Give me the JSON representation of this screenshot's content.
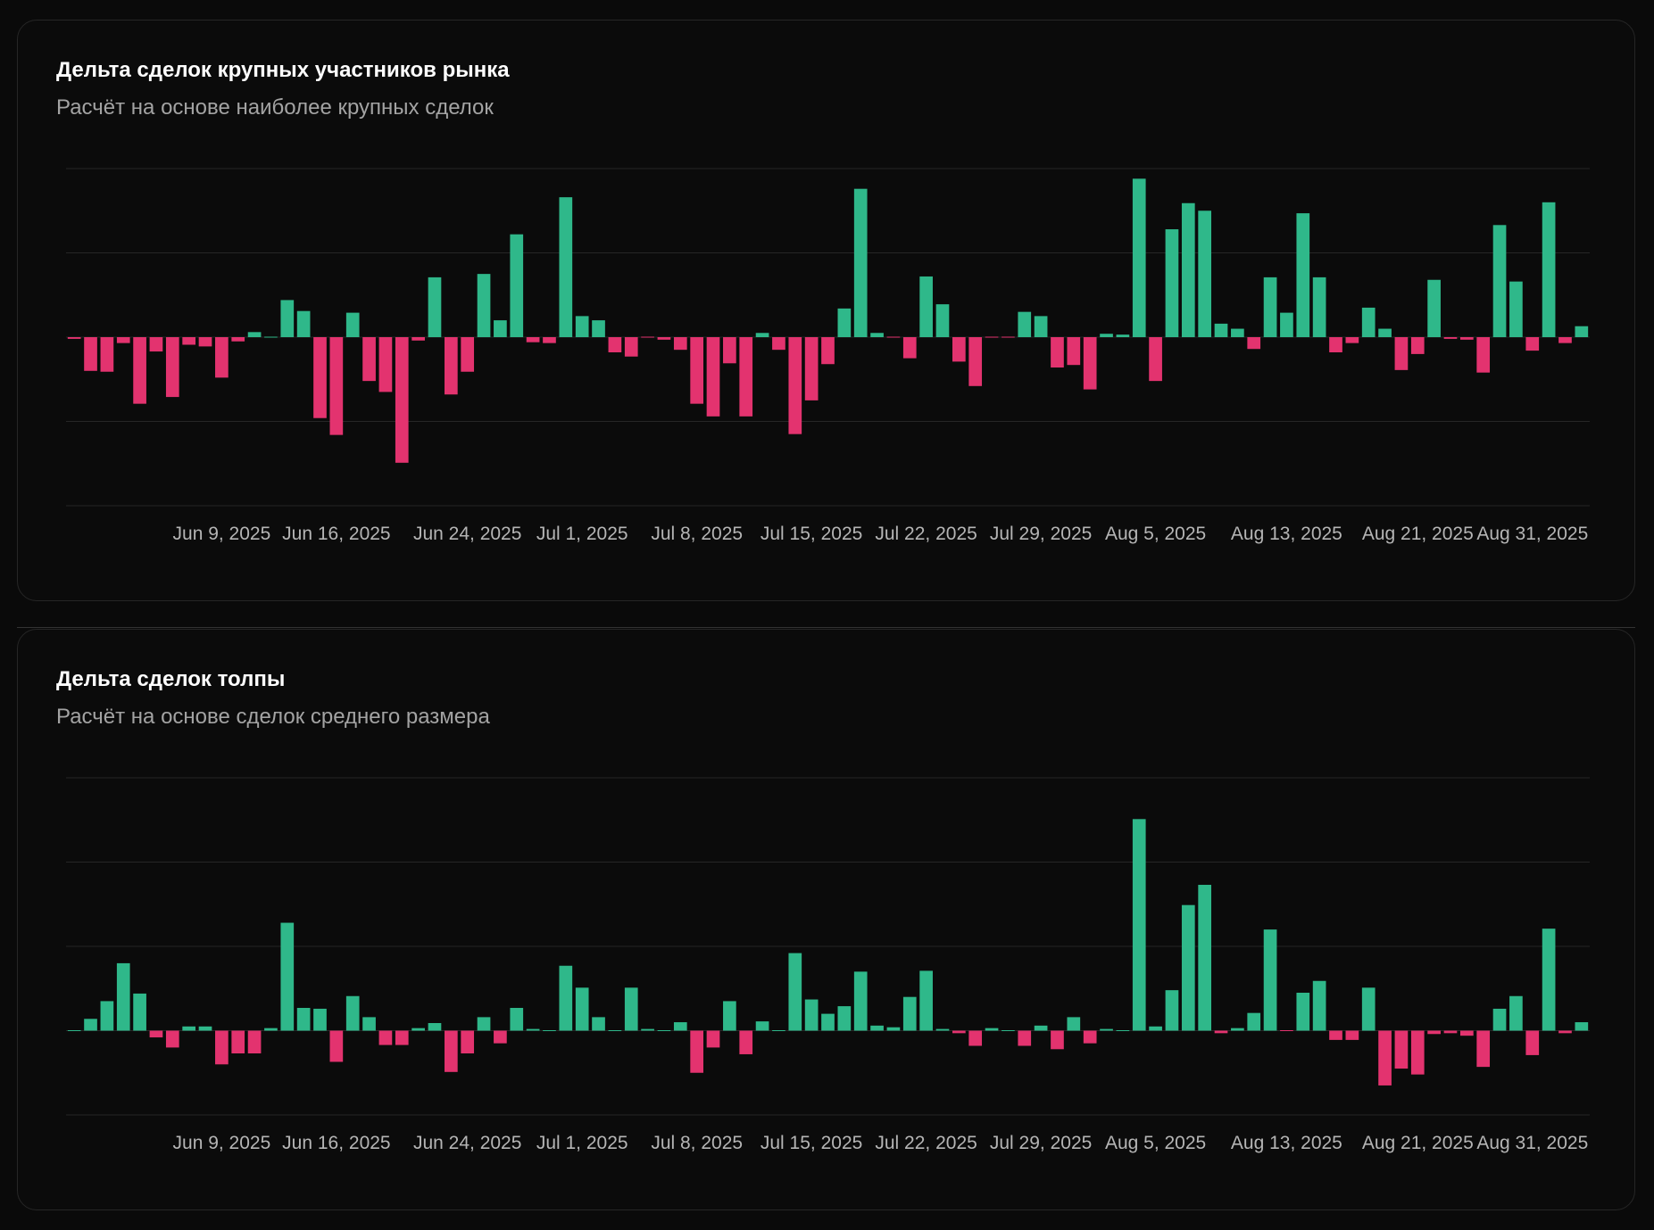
{
  "colors": {
    "positive": "#2fb88a",
    "negative": "#e3336f",
    "grid": "#262626"
  },
  "charts": [
    {
      "title": "Дельта сделок крупных участников рынка",
      "subtitle": "Расчёт на основе наиболее крупных сделок"
    },
    {
      "title": "Дельта сделок толпы",
      "subtitle": "Расчёт на основе сделок среднего размера"
    }
  ],
  "chart_data": [
    {
      "type": "bar",
      "title": "Дельта сделок крупных участников рынка",
      "x_tick_labels": [
        "Jun 9, 2025",
        "Jun 16, 2025",
        "Jun 24, 2025",
        "Jul 1, 2025",
        "Jul 8, 2025",
        "Jul 15, 2025",
        "Jul 22, 2025",
        "Jul 29, 2025",
        "Aug 5, 2025",
        "Aug 13, 2025",
        "Aug 21, 2025",
        "Aug 31, 2025"
      ],
      "x_tick_bar_index": [
        9,
        16,
        24,
        31,
        38,
        45,
        52,
        59,
        66,
        74,
        82,
        89
      ],
      "ylim": [
        -2,
        2
      ],
      "grid": true,
      "values": [
        -0.02,
        -0.4,
        -0.41,
        -0.07,
        -0.79,
        -0.17,
        -0.71,
        -0.09,
        -0.11,
        -0.48,
        -0.05,
        0.06,
        0.01,
        0.44,
        0.31,
        -0.96,
        -1.16,
        0.29,
        -0.52,
        -0.65,
        -1.49,
        -0.04,
        0.71,
        -0.68,
        -0.41,
        0.75,
        0.2,
        1.22,
        -0.06,
        -0.07,
        1.66,
        0.25,
        0.2,
        -0.18,
        -0.23,
        -0.01,
        -0.03,
        -0.15,
        -0.79,
        -0.94,
        -0.31,
        -0.94,
        0.05,
        -0.15,
        -1.15,
        -0.75,
        -0.32,
        0.34,
        1.76,
        0.05,
        -0.01,
        -0.25,
        0.72,
        0.39,
        -0.29,
        -0.58,
        -0.01,
        -0.01,
        0.3,
        0.25,
        -0.36,
        -0.33,
        -0.62,
        0.04,
        0.03,
        1.88,
        -0.52,
        1.28,
        1.59,
        1.5,
        0.16,
        0.1,
        -0.14,
        0.71,
        0.29,
        1.47,
        0.71,
        -0.18,
        -0.07,
        0.35,
        0.1,
        -0.39,
        -0.2,
        0.68,
        -0.02,
        -0.03,
        -0.42,
        1.33,
        0.66,
        -0.16,
        1.6,
        -0.07,
        0.13
      ]
    },
    {
      "type": "bar",
      "title": "Дельта сделок толпы",
      "x_tick_labels": [
        "Jun 9, 2025",
        "Jun 16, 2025",
        "Jun 24, 2025",
        "Jul 1, 2025",
        "Jul 8, 2025",
        "Jul 15, 2025",
        "Jul 22, 2025",
        "Jul 29, 2025",
        "Aug 5, 2025",
        "Aug 13, 2025",
        "Aug 21, 2025",
        "Aug 31, 2025"
      ],
      "x_tick_bar_index": [
        9,
        16,
        24,
        31,
        38,
        45,
        52,
        59,
        66,
        74,
        82,
        89
      ],
      "ylim": [
        -1,
        3
      ],
      "grid": true,
      "values": [
        0,
        0.14,
        0.35,
        0.8,
        0.44,
        -0.08,
        -0.2,
        0.05,
        0.05,
        -0.4,
        -0.27,
        -0.27,
        0.03,
        1.28,
        0.27,
        0.26,
        -0.37,
        0.41,
        0.16,
        -0.17,
        -0.17,
        0.03,
        0.09,
        -0.49,
        -0.27,
        0.16,
        -0.15,
        0.27,
        0.02,
        0,
        0.77,
        0.51,
        0.16,
        0,
        0.51,
        0.02,
        0,
        0.1,
        -0.5,
        -0.2,
        0.35,
        -0.28,
        0.11,
        0.01,
        0.92,
        0.37,
        0.2,
        0.29,
        0.7,
        0.06,
        0.04,
        0.4,
        0.71,
        0.02,
        -0.03,
        -0.18,
        0.03,
        0.01,
        -0.18,
        0.06,
        -0.22,
        0.16,
        -0.15,
        0.02,
        0,
        2.51,
        0.05,
        0.48,
        1.49,
        1.73,
        -0.03,
        0.03,
        0.21,
        1.2,
        -0.01,
        0.45,
        0.59,
        -0.11,
        -0.11,
        0.51,
        -0.65,
        -0.45,
        -0.52,
        -0.04,
        -0.03,
        -0.06,
        -0.43,
        0.26,
        0.41,
        -0.29,
        1.21,
        -0.03,
        0.1
      ]
    }
  ]
}
